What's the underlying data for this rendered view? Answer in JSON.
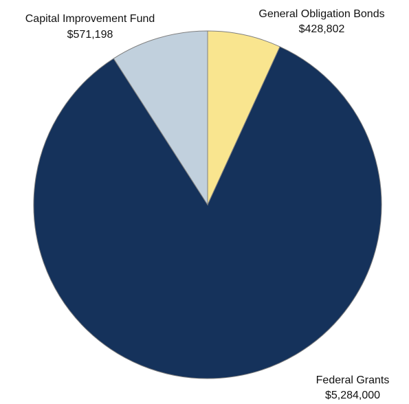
{
  "chart_data": {
    "type": "pie",
    "title": "",
    "start_angle_deg": 0,
    "direction": "clockwise",
    "slices": [
      {
        "label": "General Obligation Bonds",
        "value_label": "$428,802",
        "value": 428802,
        "color": "#f9e58f"
      },
      {
        "label": "Federal Grants",
        "value_label": "$5,284,000",
        "value": 5284000,
        "color": "#15325b"
      },
      {
        "label": "Capital Improvement Fund",
        "value_label": "$571,198",
        "value": 571198,
        "color": "#c1d0dd"
      }
    ]
  }
}
